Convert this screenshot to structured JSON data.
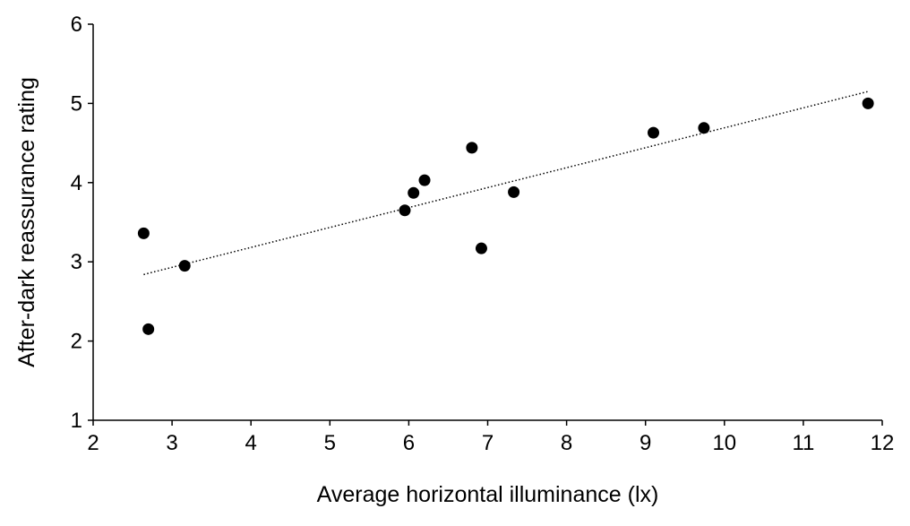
{
  "chart_data": {
    "type": "scatter",
    "xlabel": "Average horizontal illuminance (lx)",
    "ylabel": "After-dark reassurance rating",
    "xlim": [
      2,
      12
    ],
    "ylim": [
      1,
      6
    ],
    "x_ticks": [
      "2",
      "3",
      "4",
      "5",
      "6",
      "7",
      "8",
      "9",
      "10",
      "11",
      "12"
    ],
    "y_ticks": [
      "1",
      "2",
      "3",
      "4",
      "5",
      "6"
    ],
    "grid": false,
    "legend": "none",
    "series": [
      {
        "points": [
          {
            "x": 2.64,
            "y": 3.36
          },
          {
            "x": 2.7,
            "y": 2.15
          },
          {
            "x": 3.16,
            "y": 2.95
          },
          {
            "x": 5.95,
            "y": 3.65
          },
          {
            "x": 6.06,
            "y": 3.87
          },
          {
            "x": 6.2,
            "y": 4.03
          },
          {
            "x": 6.8,
            "y": 4.44
          },
          {
            "x": 6.92,
            "y": 3.17
          },
          {
            "x": 7.33,
            "y": 3.88
          },
          {
            "x": 9.1,
            "y": 4.63
          },
          {
            "x": 9.74,
            "y": 4.69
          },
          {
            "x": 11.82,
            "y": 5.0
          }
        ],
        "color": "#000000",
        "marker": "circle"
      }
    ],
    "trendline": {
      "type": "linear",
      "style": "dotted",
      "x_range": [
        2.64,
        11.82
      ],
      "y_start": 2.84,
      "y_end": 5.15,
      "color": "#000000"
    }
  }
}
